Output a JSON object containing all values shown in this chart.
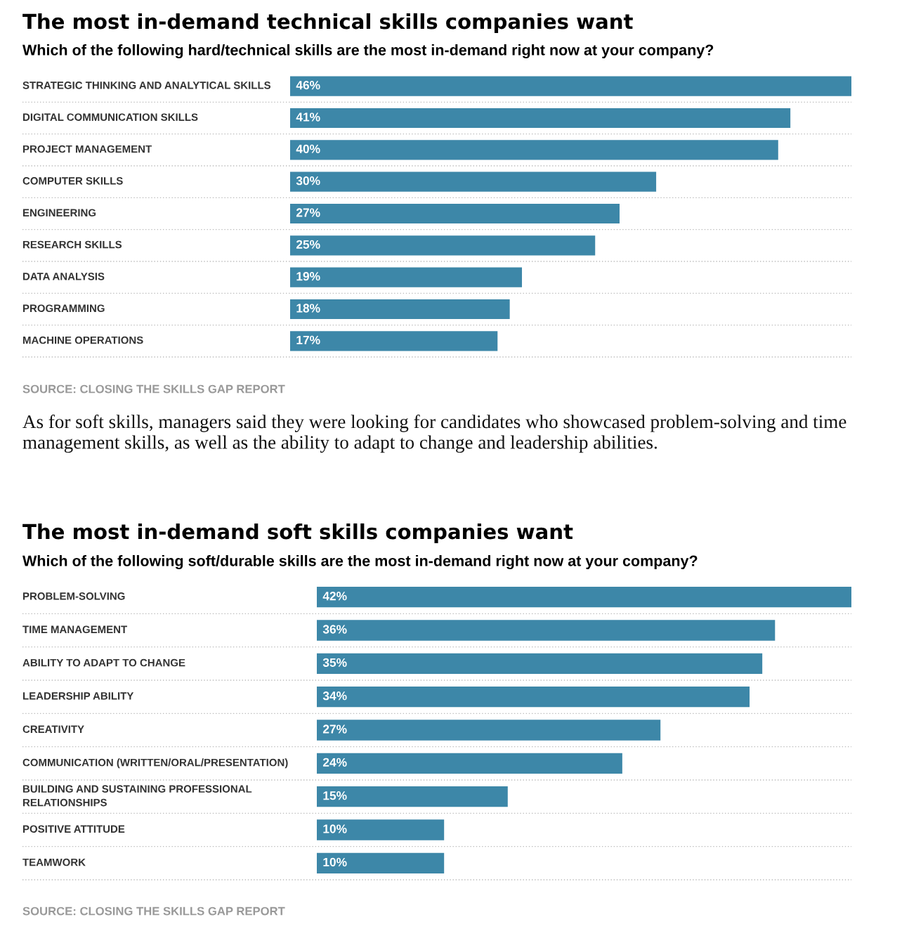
{
  "chart_data": [
    {
      "type": "bar",
      "orientation": "horizontal",
      "title": "The most in-demand technical skills companies want",
      "subtitle": "Which of the following hard/technical skills are the most in-demand right now at your company?",
      "categories": [
        "STRATEGIC THINKING AND ANALYTICAL SKILLS",
        "DIGITAL COMMUNICATION SKILLS",
        "PROJECT MANAGEMENT",
        "COMPUTER SKILLS",
        "ENGINEERING",
        "RESEARCH SKILLS",
        "DATA ANALYSIS",
        "PROGRAMMING",
        "MACHINE OPERATIONS"
      ],
      "values": [
        46,
        41,
        40,
        30,
        27,
        25,
        19,
        18,
        17
      ],
      "value_labels": [
        "46%",
        "41%",
        "40%",
        "30%",
        "27%",
        "25%",
        "19%",
        "18%",
        "17%"
      ],
      "color": "#3d87a8",
      "grid": "y",
      "tick_labels": "y",
      "annotations": [
        "SOURCE: CLOSING THE SKILLS GAP REPORT",
        "As for soft skills, managers said they were looking for candidates who showcased problem-solving and time management skills, as well as the ability to adapt to change and leadership abilities."
      ]
    },
    {
      "type": "bar",
      "orientation": "horizontal",
      "title": "The most in-demand soft skills companies want",
      "subtitle": "Which of the following soft/durable skills are the most in-demand right now at your company?",
      "categories": [
        "PROBLEM-SOLVING",
        "TIME MANAGEMENT",
        "ABILITY TO ADAPT TO CHANGE",
        "LEADERSHIP ABILITY",
        "CREATIVITY",
        "COMMUNICATION (WRITTEN/ORAL/PRESENTATION)",
        "BUILDING AND SUSTAINING PROFESSIONAL\nRELATIONSHIPS",
        "POSITIVE ATTITUDE",
        "TEAMWORK"
      ],
      "values": [
        42,
        36,
        35,
        34,
        27,
        24,
        15,
        10,
        10
      ],
      "value_labels": [
        "42%",
        "36%",
        "35%",
        "34%",
        "27%",
        "24%",
        "15%",
        "10%",
        "10%"
      ],
      "color": "#3d87a8",
      "grid": "y",
      "tick_labels": "y",
      "annotations": [
        "SOURCE: CLOSING THE SKILLS GAP REPORT"
      ]
    }
  ]
}
